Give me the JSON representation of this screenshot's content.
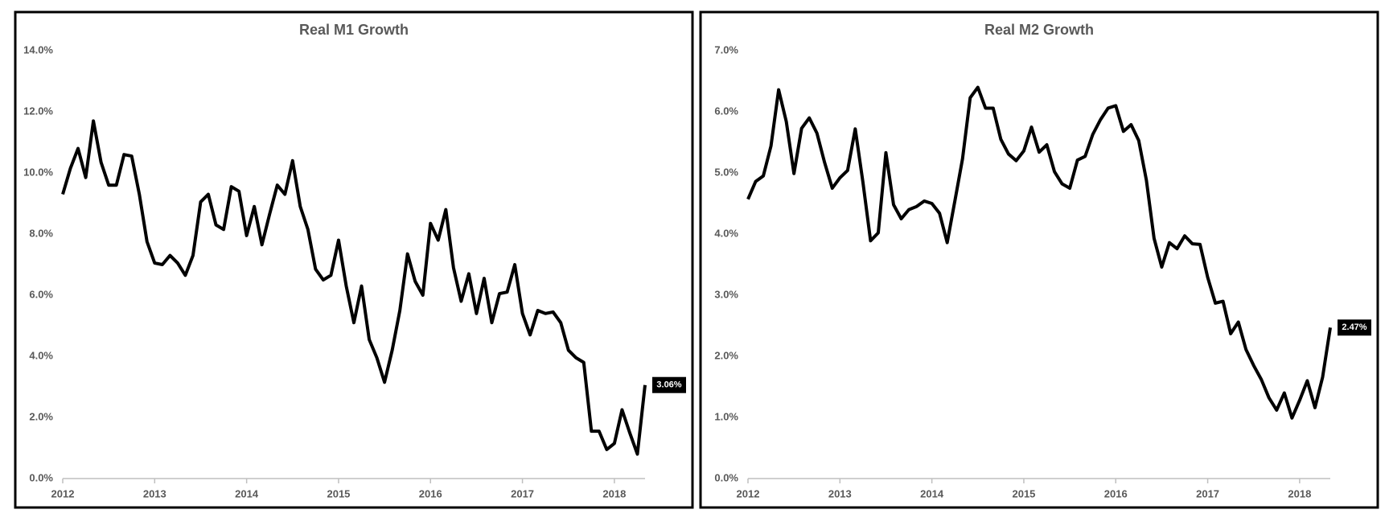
{
  "chart_data": [
    {
      "type": "line",
      "title": "Real M1 Growth",
      "categories": [
        "2012",
        null,
        null,
        null,
        null,
        null,
        null,
        null,
        null,
        null,
        null,
        null,
        "2013",
        null,
        null,
        null,
        null,
        null,
        null,
        null,
        null,
        null,
        null,
        null,
        "2014",
        null,
        null,
        null,
        null,
        null,
        null,
        null,
        null,
        null,
        null,
        null,
        "2015",
        null,
        null,
        null,
        null,
        null,
        null,
        null,
        null,
        null,
        null,
        null,
        "2016",
        null,
        null,
        null,
        null,
        null,
        null,
        null,
        null,
        null,
        null,
        null,
        "2017",
        null,
        null,
        null,
        null,
        null,
        null,
        null,
        null,
        null,
        null,
        null,
        "2018",
        null,
        null,
        null,
        null
      ],
      "series": [
        {
          "color": "#000000",
          "values": [
            9.3,
            10.15,
            10.8,
            9.85,
            11.7,
            10.35,
            9.6,
            9.6,
            10.6,
            10.55,
            9.3,
            7.75,
            7.05,
            7.0,
            7.3,
            7.05,
            6.65,
            7.3,
            9.05,
            9.3,
            8.3,
            8.15,
            9.55,
            9.4,
            7.95,
            8.9,
            7.65,
            8.65,
            9.6,
            9.3,
            10.4,
            8.9,
            8.15,
            6.85,
            6.5,
            6.65,
            7.8,
            6.3,
            5.1,
            6.3,
            4.55,
            3.95,
            3.15,
            4.2,
            5.5,
            7.35,
            6.45,
            6.0,
            8.35,
            7.8,
            8.8,
            6.9,
            5.8,
            6.7,
            5.4,
            6.55,
            5.1,
            6.05,
            6.1,
            7.0,
            5.4,
            4.7,
            5.5,
            5.4,
            5.45,
            5.1,
            4.2,
            3.95,
            3.8,
            1.55,
            1.55,
            0.95,
            1.15,
            2.25,
            1.5,
            0.8,
            3.06
          ],
          "value_labels": [
            null,
            null,
            null,
            null,
            null,
            null,
            null,
            null,
            null,
            null,
            null,
            null,
            null,
            null,
            null,
            null,
            null,
            null,
            null,
            null,
            null,
            null,
            null,
            null,
            null,
            null,
            null,
            null,
            null,
            null,
            null,
            null,
            null,
            null,
            null,
            null,
            null,
            null,
            null,
            null,
            null,
            null,
            null,
            null,
            null,
            null,
            null,
            null,
            null,
            null,
            null,
            null,
            null,
            null,
            null,
            null,
            null,
            null,
            null,
            null,
            null,
            null,
            null,
            null,
            null,
            null,
            null,
            null,
            null,
            null,
            null,
            null,
            null,
            null,
            null,
            null,
            "3.06%"
          ]
        }
      ],
      "ylim": [
        0,
        14
      ],
      "yticks": [
        {
          "value": 0,
          "label": "0.0%"
        },
        {
          "value": 2,
          "label": "2.0%"
        },
        {
          "value": 4,
          "label": "4.0%"
        },
        {
          "value": 6,
          "label": "6.0%"
        },
        {
          "value": 8,
          "label": "8.0%"
        },
        {
          "value": 10,
          "label": "10.0%"
        },
        {
          "value": 12,
          "label": "12.0%"
        },
        {
          "value": 14,
          "label": "14.0%"
        }
      ],
      "grid": false
    },
    {
      "type": "line",
      "title": "Real M2 Growth",
      "categories": [
        "2012",
        null,
        null,
        null,
        null,
        null,
        null,
        null,
        null,
        null,
        null,
        null,
        "2013",
        null,
        null,
        null,
        null,
        null,
        null,
        null,
        null,
        null,
        null,
        null,
        "2014",
        null,
        null,
        null,
        null,
        null,
        null,
        null,
        null,
        null,
        null,
        null,
        "2015",
        null,
        null,
        null,
        null,
        null,
        null,
        null,
        null,
        null,
        null,
        null,
        "2016",
        null,
        null,
        null,
        null,
        null,
        null,
        null,
        null,
        null,
        null,
        null,
        "2017",
        null,
        null,
        null,
        null,
        null,
        null,
        null,
        null,
        null,
        null,
        null,
        "2018",
        null,
        null,
        null,
        null
      ],
      "series": [
        {
          "color": "#000000",
          "values": [
            4.57,
            4.86,
            4.95,
            5.44,
            6.36,
            5.84,
            4.99,
            5.73,
            5.9,
            5.65,
            5.17,
            4.75,
            4.92,
            5.04,
            5.72,
            4.85,
            3.89,
            4.02,
            5.33,
            4.48,
            4.25,
            4.4,
            4.45,
            4.54,
            4.5,
            4.34,
            3.86,
            4.54,
            5.23,
            6.23,
            6.4,
            6.06,
            6.06,
            5.55,
            5.31,
            5.2,
            5.36,
            5.75,
            5.34,
            5.46,
            5.02,
            4.82,
            4.75,
            5.21,
            5.27,
            5.63,
            5.87,
            6.06,
            6.1,
            5.68,
            5.79,
            5.53,
            4.88,
            3.93,
            3.46,
            3.86,
            3.76,
            3.97,
            3.84,
            3.83,
            3.29,
            2.87,
            2.9,
            2.37,
            2.56,
            2.11,
            1.85,
            1.62,
            1.32,
            1.12,
            1.4,
            0.99,
            1.28,
            1.6,
            1.16,
            1.66,
            2.47
          ],
          "value_labels": [
            null,
            null,
            null,
            null,
            null,
            null,
            null,
            null,
            null,
            null,
            null,
            null,
            null,
            null,
            null,
            null,
            null,
            null,
            null,
            null,
            null,
            null,
            null,
            null,
            null,
            null,
            null,
            null,
            null,
            null,
            null,
            null,
            null,
            null,
            null,
            null,
            null,
            null,
            null,
            null,
            null,
            null,
            null,
            null,
            null,
            null,
            null,
            null,
            null,
            null,
            null,
            null,
            null,
            null,
            null,
            null,
            null,
            null,
            null,
            null,
            null,
            null,
            null,
            null,
            null,
            null,
            null,
            null,
            null,
            null,
            null,
            null,
            null,
            null,
            null,
            null,
            "2.47%"
          ]
        }
      ],
      "ylim": [
        0,
        7
      ],
      "yticks": [
        {
          "value": 0,
          "label": "0.0%"
        },
        {
          "value": 1,
          "label": "1.0%"
        },
        {
          "value": 2,
          "label": "2.0%"
        },
        {
          "value": 3,
          "label": "3.0%"
        },
        {
          "value": 4,
          "label": "4.0%"
        },
        {
          "value": 5,
          "label": "5.0%"
        },
        {
          "value": 6,
          "label": "6.0%"
        },
        {
          "value": 7,
          "label": "7.0%"
        }
      ],
      "grid": false
    }
  ]
}
